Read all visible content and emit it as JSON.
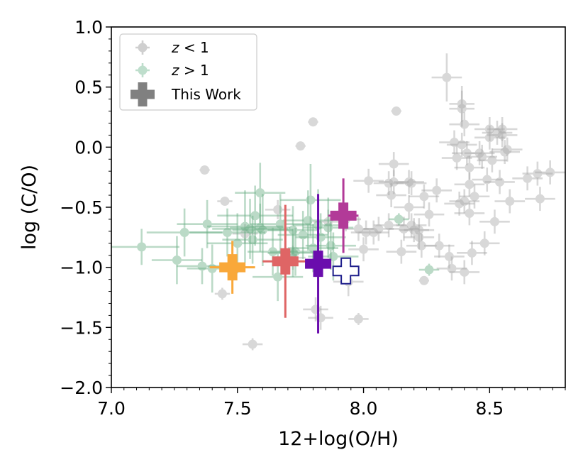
{
  "chart_data": {
    "type": "scatter",
    "title": "",
    "xlabel": "12+log(O/H)",
    "ylabel": "log (C/O)",
    "xlim": [
      7.0,
      8.8
    ],
    "ylim": [
      -2.0,
      1.0
    ],
    "xticks": [
      7.0,
      7.5,
      8.0,
      8.5
    ],
    "xtick_labels": [
      "7.0",
      "7.5",
      "8.0",
      "8.5"
    ],
    "yticks": [
      1.0,
      0.5,
      0.0,
      -0.5,
      -1.0,
      -1.5,
      -2.0
    ],
    "ytick_labels": [
      "1.0",
      "0.5",
      "0.0",
      "−0.5",
      "−1.0",
      "−1.5",
      "−2.0"
    ],
    "legend_position": "top-left",
    "legend": [
      {
        "label_italic": "z",
        "label_rest": " < 1",
        "marker": "circle",
        "color": "#a0a0a0"
      },
      {
        "label_italic": "z",
        "label_rest": " > 1",
        "marker": "circle",
        "color": "#7fbf9a"
      },
      {
        "label_italic": "",
        "label_rest": "This Work",
        "marker": "cross",
        "color": "#808080"
      }
    ],
    "series": [
      {
        "name": "z < 1",
        "color": "#a9a9a9",
        "points": [
          {
            "x": 7.37,
            "y": -0.19,
            "xerr": 0.02,
            "yerr": 0.02
          },
          {
            "x": 7.45,
            "y": -0.45,
            "xerr": 0.03,
            "yerr": 0.03
          },
          {
            "x": 7.44,
            "y": -1.22,
            "xerr": 0.03,
            "yerr": 0.05
          },
          {
            "x": 7.56,
            "y": -1.64,
            "xerr": 0.04,
            "yerr": 0.05
          },
          {
            "x": 7.53,
            "y": -0.72,
            "xerr": 0.05,
            "yerr": 0.08
          },
          {
            "x": 7.66,
            "y": -0.52,
            "xerr": 0.05,
            "yerr": 0.08
          },
          {
            "x": 7.72,
            "y": -0.92,
            "xerr": 0.05,
            "yerr": 0.1
          },
          {
            "x": 7.75,
            "y": 0.01,
            "xerr": 0.02,
            "yerr": 0.03
          },
          {
            "x": 7.8,
            "y": 0.21,
            "xerr": 0.02,
            "yerr": 0.02
          },
          {
            "x": 7.81,
            "y": -1.35,
            "xerr": 0.05,
            "yerr": 0.1
          },
          {
            "x": 7.83,
            "y": -1.42,
            "xerr": 0.05,
            "yerr": 0.1
          },
          {
            "x": 7.86,
            "y": -0.62,
            "xerr": 0.06,
            "yerr": 0.1
          },
          {
            "x": 7.93,
            "y": -0.6,
            "xerr": 0.06,
            "yerr": 0.1
          },
          {
            "x": 7.94,
            "y": -1.12,
            "xerr": 0.06,
            "yerr": 0.12
          },
          {
            "x": 7.98,
            "y": -0.68,
            "xerr": 0.06,
            "yerr": 0.1
          },
          {
            "x": 7.98,
            "y": -1.43,
            "xerr": 0.04,
            "yerr": 0.05
          },
          {
            "x": 8.0,
            "y": -0.85,
            "xerr": 0.06,
            "yerr": 0.1
          },
          {
            "x": 8.01,
            "y": -0.71,
            "xerr": 0.06,
            "yerr": 0.1
          },
          {
            "x": 8.02,
            "y": -0.28,
            "xerr": 0.06,
            "yerr": 0.1
          },
          {
            "x": 8.04,
            "y": -0.71,
            "xerr": 0.06,
            "yerr": 0.1
          },
          {
            "x": 8.06,
            "y": -0.68,
            "xerr": 0.06,
            "yerr": 0.1
          },
          {
            "x": 8.1,
            "y": -0.65,
            "xerr": 0.06,
            "yerr": 0.1
          },
          {
            "x": 8.1,
            "y": -0.3,
            "xerr": 0.06,
            "yerr": 0.1
          },
          {
            "x": 8.11,
            "y": -0.4,
            "xerr": 0.06,
            "yerr": 0.1
          },
          {
            "x": 8.12,
            "y": -0.14,
            "xerr": 0.06,
            "yerr": 0.1
          },
          {
            "x": 8.12,
            "y": -0.29,
            "xerr": 0.06,
            "yerr": 0.1
          },
          {
            "x": 8.13,
            "y": 0.3,
            "xerr": 0.02,
            "yerr": 0.03
          },
          {
            "x": 8.15,
            "y": -0.87,
            "xerr": 0.06,
            "yerr": 0.1
          },
          {
            "x": 8.16,
            "y": -0.68,
            "xerr": 0.06,
            "yerr": 0.1
          },
          {
            "x": 8.18,
            "y": -0.5,
            "xerr": 0.06,
            "yerr": 0.1
          },
          {
            "x": 8.18,
            "y": -0.29,
            "xerr": 0.06,
            "yerr": 0.1
          },
          {
            "x": 8.19,
            "y": -0.3,
            "xerr": 0.06,
            "yerr": 0.1
          },
          {
            "x": 8.19,
            "y": -0.65,
            "xerr": 0.06,
            "yerr": 0.1
          },
          {
            "x": 8.2,
            "y": -0.69,
            "xerr": 0.06,
            "yerr": 0.1
          },
          {
            "x": 8.22,
            "y": -0.69,
            "xerr": 0.06,
            "yerr": 0.1
          },
          {
            "x": 8.22,
            "y": -0.75,
            "xerr": 0.06,
            "yerr": 0.1
          },
          {
            "x": 8.23,
            "y": -0.82,
            "xerr": 0.06,
            "yerr": 0.1
          },
          {
            "x": 8.24,
            "y": -1.11,
            "xerr": 0.02,
            "yerr": 0.03
          },
          {
            "x": 8.24,
            "y": -0.41,
            "xerr": 0.06,
            "yerr": 0.1
          },
          {
            "x": 8.26,
            "y": -0.56,
            "xerr": 0.06,
            "yerr": 0.1
          },
          {
            "x": 8.29,
            "y": -0.36,
            "xerr": 0.06,
            "yerr": 0.1
          },
          {
            "x": 8.3,
            "y": -0.82,
            "xerr": 0.06,
            "yerr": 0.1
          },
          {
            "x": 8.33,
            "y": 0.58,
            "xerr": 0.06,
            "yerr": 0.2
          },
          {
            "x": 8.34,
            "y": -0.91,
            "xerr": 0.06,
            "yerr": 0.1
          },
          {
            "x": 8.35,
            "y": -1.01,
            "xerr": 0.06,
            "yerr": 0.1
          },
          {
            "x": 8.36,
            "y": 0.04,
            "xerr": 0.06,
            "yerr": 0.1
          },
          {
            "x": 8.37,
            "y": -0.09,
            "xerr": 0.06,
            "yerr": 0.1
          },
          {
            "x": 8.38,
            "y": -0.47,
            "xerr": 0.06,
            "yerr": 0.1
          },
          {
            "x": 8.39,
            "y": 0.02,
            "xerr": 0.06,
            "yerr": 0.1
          },
          {
            "x": 8.39,
            "y": 0.36,
            "xerr": 0.05,
            "yerr": 0.15
          },
          {
            "x": 8.39,
            "y": 0.32,
            "xerr": 0.05,
            "yerr": 0.15
          },
          {
            "x": 8.4,
            "y": -0.45,
            "xerr": 0.06,
            "yerr": 0.1
          },
          {
            "x": 8.4,
            "y": -1.04,
            "xerr": 0.06,
            "yerr": 0.1
          },
          {
            "x": 8.4,
            "y": 0.19,
            "xerr": 0.06,
            "yerr": 0.1
          },
          {
            "x": 8.41,
            "y": -0.05,
            "xerr": 0.06,
            "yerr": 0.1
          },
          {
            "x": 8.42,
            "y": -0.17,
            "xerr": 0.06,
            "yerr": 0.1
          },
          {
            "x": 8.42,
            "y": -0.31,
            "xerr": 0.06,
            "yerr": 0.1
          },
          {
            "x": 8.42,
            "y": -0.55,
            "xerr": 0.06,
            "yerr": 0.1
          },
          {
            "x": 8.43,
            "y": -0.88,
            "xerr": 0.06,
            "yerr": 0.1
          },
          {
            "x": 8.44,
            "y": -0.41,
            "xerr": 0.06,
            "yerr": 0.1
          },
          {
            "x": 8.46,
            "y": -0.05,
            "xerr": 0.06,
            "yerr": 0.1
          },
          {
            "x": 8.47,
            "y": -0.08,
            "xerr": 0.06,
            "yerr": 0.1
          },
          {
            "x": 8.48,
            "y": -0.8,
            "xerr": 0.06,
            "yerr": 0.1
          },
          {
            "x": 8.49,
            "y": -0.27,
            "xerr": 0.06,
            "yerr": 0.1
          },
          {
            "x": 8.5,
            "y": 0.08,
            "xerr": 0.06,
            "yerr": 0.1
          },
          {
            "x": 8.5,
            "y": 0.15,
            "xerr": 0.06,
            "yerr": 0.1
          },
          {
            "x": 8.51,
            "y": -0.11,
            "xerr": 0.06,
            "yerr": 0.1
          },
          {
            "x": 8.52,
            "y": -0.62,
            "xerr": 0.06,
            "yerr": 0.1
          },
          {
            "x": 8.53,
            "y": 0.12,
            "xerr": 0.06,
            "yerr": 0.1
          },
          {
            "x": 8.54,
            "y": -0.29,
            "xerr": 0.06,
            "yerr": 0.1
          },
          {
            "x": 8.55,
            "y": 0.15,
            "xerr": 0.06,
            "yerr": 0.1
          },
          {
            "x": 8.55,
            "y": 0.1,
            "xerr": 0.06,
            "yerr": 0.1
          },
          {
            "x": 8.56,
            "y": -0.04,
            "xerr": 0.06,
            "yerr": 0.1
          },
          {
            "x": 8.57,
            "y": -0.02,
            "xerr": 0.06,
            "yerr": 0.1
          },
          {
            "x": 8.58,
            "y": -0.45,
            "xerr": 0.06,
            "yerr": 0.1
          },
          {
            "x": 8.65,
            "y": -0.26,
            "xerr": 0.06,
            "yerr": 0.1
          },
          {
            "x": 8.69,
            "y": -0.22,
            "xerr": 0.06,
            "yerr": 0.1
          },
          {
            "x": 8.7,
            "y": -0.43,
            "xerr": 0.06,
            "yerr": 0.1
          },
          {
            "x": 8.74,
            "y": -0.21,
            "xerr": 0.06,
            "yerr": 0.1
          }
        ]
      },
      {
        "name": "z > 1",
        "color": "#6aaf85",
        "points": [
          {
            "x": 7.12,
            "y": -0.83,
            "xerr": 0.15,
            "yerr": 0.15
          },
          {
            "x": 7.26,
            "y": -0.94,
            "xerr": 0.1,
            "yerr": 0.2
          },
          {
            "x": 7.29,
            "y": -0.71,
            "xerr": 0.15,
            "yerr": 0.2
          },
          {
            "x": 7.36,
            "y": -0.99,
            "xerr": 0.1,
            "yerr": 0.15
          },
          {
            "x": 7.38,
            "y": -0.64,
            "xerr": 0.12,
            "yerr": 0.2
          },
          {
            "x": 7.4,
            "y": -1.01,
            "xerr": 0.1,
            "yerr": 0.2
          },
          {
            "x": 7.46,
            "y": -0.71,
            "xerr": 0.15,
            "yerr": 0.2
          },
          {
            "x": 7.5,
            "y": -0.8,
            "xerr": 0.12,
            "yerr": 0.25
          },
          {
            "x": 7.53,
            "y": -0.66,
            "xerr": 0.15,
            "yerr": 0.3
          },
          {
            "x": 7.55,
            "y": -0.68,
            "xerr": 0.15,
            "yerr": 0.25
          },
          {
            "x": 7.56,
            "y": -0.77,
            "xerr": 0.12,
            "yerr": 0.2
          },
          {
            "x": 7.57,
            "y": -0.57,
            "xerr": 0.15,
            "yerr": 0.25
          },
          {
            "x": 7.59,
            "y": -0.67,
            "xerr": 0.12,
            "yerr": 0.2
          },
          {
            "x": 7.59,
            "y": -0.38,
            "xerr": 0.1,
            "yerr": 0.25
          },
          {
            "x": 7.6,
            "y": -0.69,
            "xerr": 0.12,
            "yerr": 0.3
          },
          {
            "x": 7.64,
            "y": -0.87,
            "xerr": 0.1,
            "yerr": 0.2
          },
          {
            "x": 7.66,
            "y": -1.08,
            "xerr": 0.1,
            "yerr": 0.2
          },
          {
            "x": 7.67,
            "y": -0.64,
            "xerr": 0.12,
            "yerr": 0.25
          },
          {
            "x": 7.72,
            "y": -0.88,
            "xerr": 0.1,
            "yerr": 0.2
          },
          {
            "x": 7.72,
            "y": -0.69,
            "xerr": 0.1,
            "yerr": 0.2
          },
          {
            "x": 7.73,
            "y": -0.87,
            "xerr": 0.1,
            "yerr": 0.2
          },
          {
            "x": 7.76,
            "y": -0.73,
            "xerr": 0.1,
            "yerr": 0.2
          },
          {
            "x": 7.78,
            "y": -0.61,
            "xerr": 0.1,
            "yerr": 0.25
          },
          {
            "x": 7.79,
            "y": -0.44,
            "xerr": 0.12,
            "yerr": 0.3
          },
          {
            "x": 7.8,
            "y": -0.84,
            "xerr": 0.1,
            "yerr": 0.2
          },
          {
            "x": 7.82,
            "y": -0.65,
            "xerr": 0.1,
            "yerr": 0.3
          },
          {
            "x": 7.83,
            "y": -0.75,
            "xerr": 0.1,
            "yerr": 0.2
          },
          {
            "x": 7.86,
            "y": -0.67,
            "xerr": 0.1,
            "yerr": 0.25
          },
          {
            "x": 7.87,
            "y": -0.82,
            "xerr": 0.1,
            "yerr": 0.2
          },
          {
            "x": 7.88,
            "y": -0.91,
            "xerr": 0.1,
            "yerr": 0.2
          },
          {
            "x": 8.14,
            "y": -0.6,
            "xerr": 0.04,
            "yerr": 0.05
          },
          {
            "x": 8.26,
            "y": -1.02,
            "xerr": 0.04,
            "yerr": 0.05
          }
        ]
      },
      {
        "name": "This Work",
        "markers": [
          {
            "x": 7.48,
            "y": -1.0,
            "xerr": 0.09,
            "yerr": 0.22,
            "color": "#f9a83a",
            "filled": true
          },
          {
            "x": 7.69,
            "y": -0.95,
            "xerr": 0.09,
            "yerr": 0.47,
            "color": "#df6565",
            "filled": true
          },
          {
            "x": 7.82,
            "y": -0.97,
            "xerr": 0.05,
            "yerr": 0.58,
            "color": "#6a0dad",
            "filled": true
          },
          {
            "x": 7.92,
            "y": -0.57,
            "xerr": 0.06,
            "yerr": 0.31,
            "color": "#b23a98",
            "filled": true
          },
          {
            "x": 7.93,
            "y": -1.03,
            "xerr": 0.0,
            "yerr": 0.0,
            "color": "#1f1f8c",
            "filled": false
          }
        ]
      }
    ]
  }
}
